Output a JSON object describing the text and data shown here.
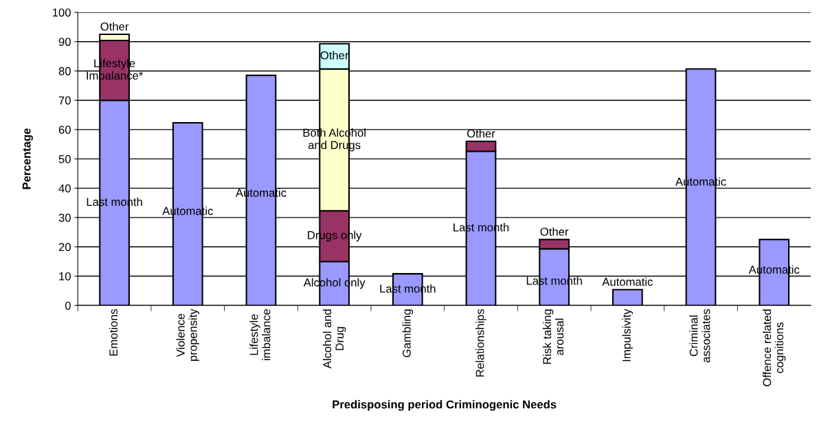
{
  "chart_data": {
    "type": "bar",
    "stacked": true,
    "xlabel": "Predisposing period Criminogenic Needs",
    "ylabel": "Percentage",
    "categories": [
      "Emotions",
      "Violence\npropensity",
      "Lifestyle\nimbalance",
      "Alcohol and\nDrug",
      "Gambling",
      "Relationships",
      "Risk taking\narousal",
      "Impulsivity",
      "Criminal\nassociates",
      "Offence related\ncognitions"
    ],
    "series": [
      {
        "color": "#9999ff",
        "values": [
          70,
          62.3,
          78.5,
          15,
          10.8,
          52.6,
          19.3,
          5.4,
          80.7,
          22.5
        ],
        "value_labels": [
          "Last month",
          "Automatic",
          "Automatic",
          "Alcohol only",
          "Last month",
          "Last month",
          "Last month",
          "Automatic",
          "Automatic",
          "Automatic"
        ]
      },
      {
        "color": "#993366",
        "values": [
          20.4,
          null,
          null,
          17.3,
          null,
          3.4,
          3.2,
          null,
          null,
          null
        ],
        "value_labels": [
          "Lifestyle\nImbalance*",
          null,
          null,
          "Drugs only",
          null,
          "Other",
          "Other",
          null,
          null,
          null
        ]
      },
      {
        "color": "#ffffcc",
        "values": [
          2.1,
          null,
          null,
          48.4,
          null,
          null,
          null,
          null,
          null,
          null
        ],
        "value_labels": [
          "Other",
          null,
          null,
          "Both Alcohol\nand Drugs",
          null,
          null,
          null,
          null,
          null,
          null
        ]
      },
      {
        "color": "#ccffff",
        "values": [
          null,
          null,
          null,
          8.6,
          null,
          null,
          null,
          null,
          null,
          null
        ],
        "value_labels": [
          null,
          null,
          null,
          "Other",
          null,
          null,
          null,
          null,
          null,
          null
        ]
      }
    ],
    "ylim": [
      0,
      100
    ],
    "yticks": [
      0,
      10,
      20,
      30,
      40,
      50,
      60,
      70,
      80,
      90,
      100
    ],
    "grid": "y"
  }
}
